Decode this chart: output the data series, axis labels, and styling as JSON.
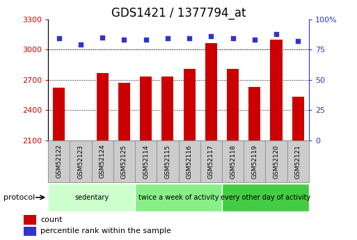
{
  "title": "GDS1421 / 1377794_at",
  "samples": [
    "GSM52122",
    "GSM52123",
    "GSM52124",
    "GSM52125",
    "GSM52114",
    "GSM52115",
    "GSM52116",
    "GSM52117",
    "GSM52118",
    "GSM52119",
    "GSM52120",
    "GSM52121"
  ],
  "counts": [
    2620,
    2100,
    2770,
    2670,
    2730,
    2730,
    2810,
    3060,
    2810,
    2630,
    3100,
    2530
  ],
  "percentile_ranks": [
    84,
    79,
    85,
    83,
    83,
    84,
    84,
    86,
    84,
    83,
    88,
    82
  ],
  "ylim_left": [
    2100,
    3300
  ],
  "ylim_right": [
    0,
    100
  ],
  "yticks_left": [
    2100,
    2400,
    2700,
    3000,
    3300
  ],
  "yticks_right": [
    0,
    25,
    50,
    75,
    100
  ],
  "ytick_right_labels": [
    "0",
    "25",
    "50",
    "75",
    "100%"
  ],
  "grid_values": [
    2400,
    2700,
    3000
  ],
  "bar_color": "#cc0000",
  "dot_color": "#3333cc",
  "groups": [
    {
      "label": "sedentary",
      "start": 0,
      "end": 4,
      "color": "#ccffcc"
    },
    {
      "label": "twice a week of activity",
      "start": 4,
      "end": 8,
      "color": "#88ee88"
    },
    {
      "label": "every other day of activity",
      "start": 8,
      "end": 12,
      "color": "#44cc44"
    }
  ],
  "protocol_label": "protocol",
  "legend_count_label": "count",
  "legend_percentile_label": "percentile rank within the sample",
  "title_fontsize": 12,
  "axis_color_left": "#cc0000",
  "axis_color_right": "#3333cc",
  "xlabel_box_color": "#cccccc",
  "xlabel_box_border": "#999999",
  "bar_width": 0.55
}
